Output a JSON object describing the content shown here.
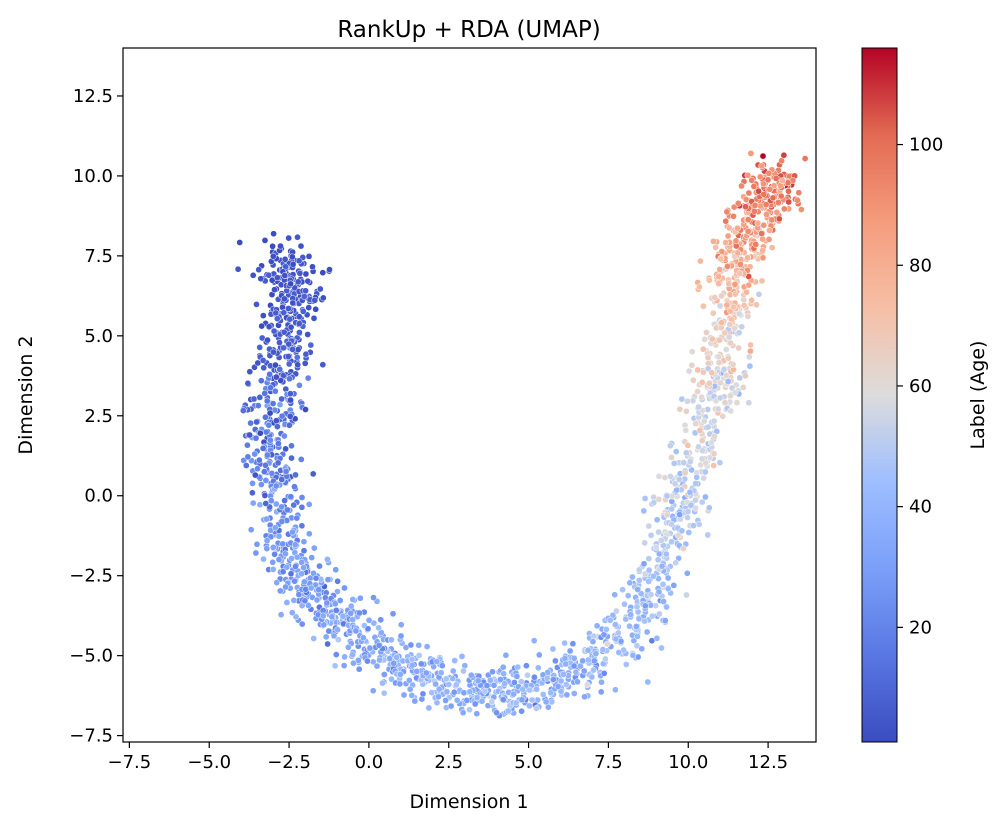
{
  "chart_data": {
    "type": "scatter",
    "title": "RankUp + RDA (UMAP)",
    "xlabel": "Dimension 1",
    "ylabel": "Dimension 2",
    "xlim": [
      -7.7,
      14.0
    ],
    "ylim": [
      -7.7,
      14.0
    ],
    "xticks": [
      -7.5,
      -5.0,
      -2.5,
      0.0,
      2.5,
      5.0,
      7.5,
      10.0,
      12.5
    ],
    "xtick_labels": [
      "−7.5",
      "−5.0",
      "−2.5",
      "0.0",
      "2.5",
      "5.0",
      "7.5",
      "10.0",
      "12.5"
    ],
    "yticks": [
      -7.5,
      -5.0,
      -2.5,
      0.0,
      2.5,
      5.0,
      7.5,
      10.0,
      12.5
    ],
    "ytick_labels": [
      "−7.5",
      "−5.0",
      "−2.5",
      "0.0",
      "2.5",
      "5.0",
      "7.5",
      "10.0",
      "12.5"
    ],
    "grid": false,
    "colorbar": {
      "label": "Label (Age)",
      "colormap": "coolwarm",
      "range": [
        1,
        116
      ],
      "ticks": [
        20,
        40,
        60,
        80,
        100
      ],
      "tick_labels": [
        "20",
        "40",
        "60",
        "80",
        "100"
      ]
    },
    "clusters": [
      {
        "x": -2.9,
        "y": 7.6,
        "age": 3
      },
      {
        "x": -2.2,
        "y": 6.6,
        "age": 4
      },
      {
        "x": -2.6,
        "y": 5.2,
        "age": 6
      },
      {
        "x": -2.9,
        "y": 3.6,
        "age": 10
      },
      {
        "x": -3.2,
        "y": 1.8,
        "age": 14
      },
      {
        "x": -2.9,
        "y": 0.0,
        "age": 22
      },
      {
        "x": -2.5,
        "y": -2.0,
        "age": 28
      },
      {
        "x": -1.6,
        "y": -3.3,
        "age": 30
      },
      {
        "x": -0.4,
        "y": -4.4,
        "age": 32
      },
      {
        "x": 1.0,
        "y": -5.3,
        "age": 35
      },
      {
        "x": 2.5,
        "y": -5.9,
        "age": 36
      },
      {
        "x": 4.0,
        "y": -6.1,
        "age": 37
      },
      {
        "x": 5.5,
        "y": -6.0,
        "age": 36
      },
      {
        "x": 7.0,
        "y": -5.2,
        "age": 37
      },
      {
        "x": 8.3,
        "y": -4.0,
        "age": 42
      },
      {
        "x": 9.2,
        "y": -2.2,
        "age": 46
      },
      {
        "x": 9.8,
        "y": -0.2,
        "age": 52
      },
      {
        "x": 10.4,
        "y": 1.8,
        "age": 56
      },
      {
        "x": 11.0,
        "y": 3.7,
        "age": 58
      },
      {
        "x": 11.2,
        "y": 5.4,
        "age": 65
      },
      {
        "x": 11.4,
        "y": 7.0,
        "age": 78
      },
      {
        "x": 11.8,
        "y": 8.4,
        "age": 86
      },
      {
        "x": 12.6,
        "y": 9.6,
        "age": 98
      }
    ]
  }
}
